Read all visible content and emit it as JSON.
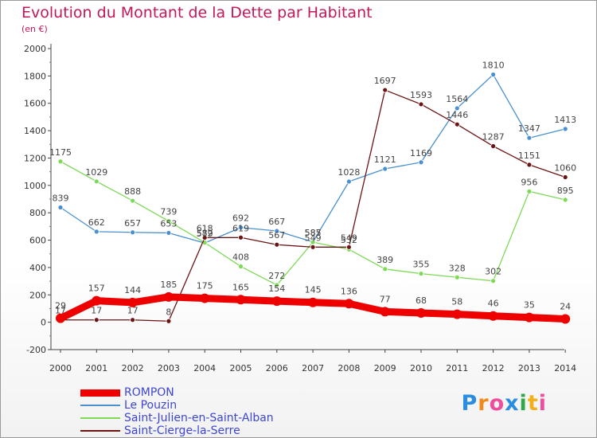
{
  "header": {
    "title": "Evolution du Montant de la Dette par Habitant",
    "unit": "(en €)"
  },
  "logo": {
    "text": "Proxiti",
    "letters": [
      "P",
      "r",
      "o",
      "x",
      "i",
      "t",
      "i"
    ]
  },
  "chart_data": {
    "type": "line",
    "title": "Evolution du Montant de la Dette par Habitant",
    "subtitle": "(en €)",
    "x": [
      "2000",
      "2001",
      "2002",
      "2003",
      "2004",
      "2005",
      "2006",
      "2007",
      "2008",
      "2009",
      "2010",
      "2011",
      "2012",
      "2013",
      "2014"
    ],
    "ylim": [
      -200,
      2000
    ],
    "yticks": [
      -200,
      0,
      200,
      400,
      600,
      800,
      1000,
      1200,
      1400,
      1600,
      1800,
      2000
    ],
    "grid": false,
    "legend_position": "bottom-left",
    "series": [
      {
        "name": "ROMPON",
        "color": "#ee0000",
        "thick": true,
        "values": [
          29,
          157,
          144,
          185,
          175,
          165,
          154,
          145,
          136,
          77,
          68,
          58,
          46,
          35,
          24
        ]
      },
      {
        "name": "Le Pouzin",
        "color": "#4a90d0",
        "thick": false,
        "values": [
          839,
          662,
          657,
          653,
          579,
          692,
          667,
          587,
          1028,
          1121,
          1169,
          1564,
          1810,
          1347,
          1413
        ]
      },
      {
        "name": "Saint-Julien-en-Saint-Alban",
        "color": "#7ed957",
        "thick": false,
        "values": [
          1175,
          1029,
          888,
          739,
          582,
          408,
          272,
          585,
          532,
          389,
          355,
          328,
          302,
          956,
          895
        ]
      },
      {
        "name": "Saint-Cierge-la-Serre",
        "color": "#6b1414",
        "thick": false,
        "values": [
          17,
          17,
          17,
          8,
          618,
          619,
          567,
          549,
          549,
          1697,
          1593,
          1446,
          1287,
          1151,
          1060
        ]
      }
    ]
  }
}
